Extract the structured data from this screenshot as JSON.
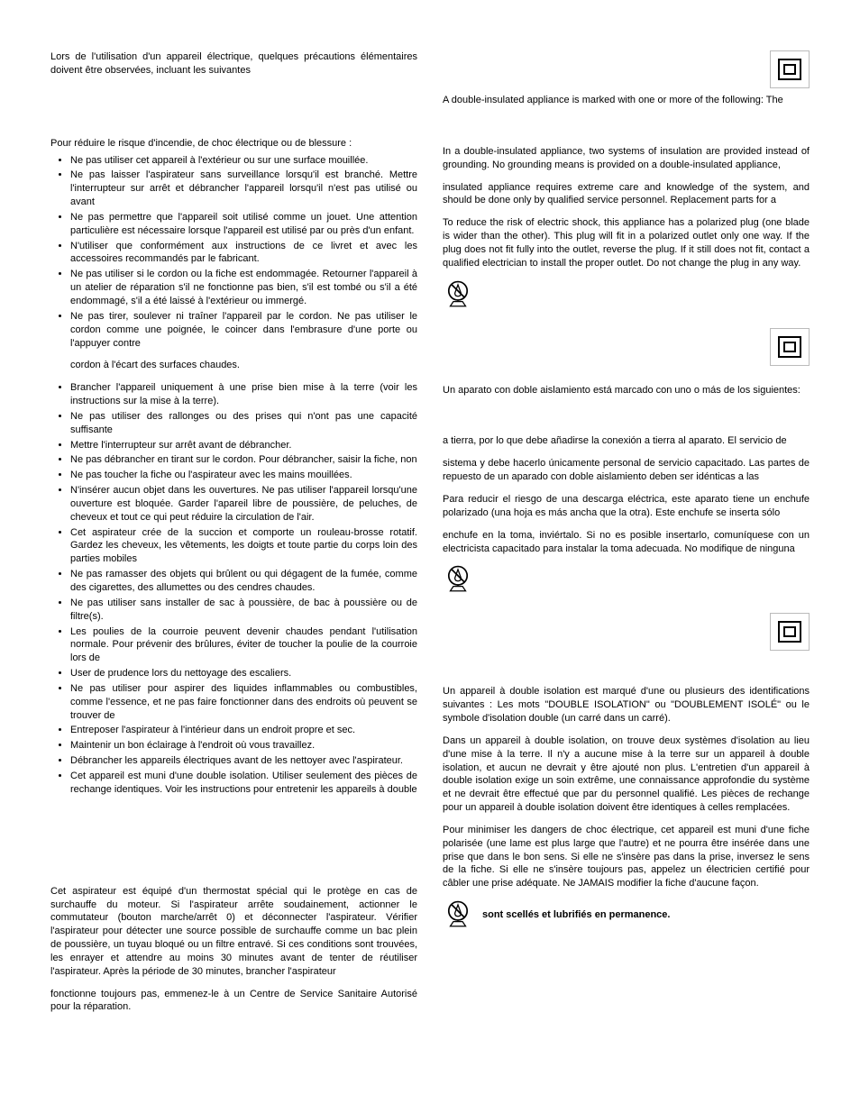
{
  "left": {
    "intro": "Lors de l'utilisation d'un appareil électrique, quelques précautions élémentaires doivent être observées, incluant les suivantes",
    "reduce": "Pour réduire le risque d'incendie, de choc électrique ou de blessure :",
    "bullets1": [
      "Ne pas utiliser cet appareil à l'extérieur ou sur une surface mouillée.",
      "Ne pas laisser l'aspirateur sans surveillance lorsqu'il est branché. Mettre l'interrupteur sur arrêt et débrancher l'appareil lorsqu'il n'est pas utilisé ou avant",
      "Ne pas permettre que l'appareil soit utilisé comme un jouet. Une attention particulière est nécessaire lorsque l'appareil est utilisé par ou près d'un enfant.",
      "N'utiliser que conformément aux instructions de ce livret et avec les accessoires recommandés par le fabricant.",
      "Ne pas utiliser si le cordon ou la fiche est endommagée. Retourner l'appareil à un atelier de réparation s'il ne fonctionne pas bien, s'il est tombé ou s'il a été endommagé, s'il a été laissé à l'extérieur ou immergé.",
      "Ne pas tirer, soulever ni traîner l'appareil par le cordon. Ne pas utiliser le cordon comme une poignée, le coincer dans l'embrasure d'une porte ou l'appuyer contre"
    ],
    "cordon": "cordon à l'écart des surfaces chaudes.",
    "bullets2": [
      "Brancher l'appareil uniquement à une prise bien mise à la terre (voir les instructions sur la mise à la terre).",
      "Ne pas utiliser des rallonges ou des prises qui n'ont pas une capacité suffisante",
      "Mettre l'interrupteur sur arrêt avant de débrancher.",
      "Ne pas débrancher en tirant sur le cordon. Pour débrancher, saisir la fiche, non",
      "Ne pas toucher la fiche ou l'aspirateur avec les mains mouillées.",
      "N'insérer aucun objet dans les ouvertures. Ne pas utiliser l'appareil lorsqu'une ouverture est bloquée. Garder l'apareil libre de poussière, de peluches, de cheveux et tout ce qui peut réduire la circulation de l'air.",
      "Cet aspirateur crée de la succion et comporte un rouleau-brosse rotatif. Gardez les cheveux, les vêtements, les doigts et toute partie du corps loin des parties mobiles",
      "Ne pas ramasser des objets qui brûlent ou qui dégagent de la fumée, comme des cigarettes, des allumettes ou des cendres chaudes.",
      "Ne pas utiliser sans installer de sac à poussière, de bac à poussière ou de filtre(s).",
      "Les poulies de la courroie peuvent devenir chaudes pendant l'utilisation normale. Pour prévenir des brûlures, éviter de toucher la poulie de la courroie lors de",
      "User de prudence lors du nettoyage des escaliers.",
      "Ne pas utiliser pour aspirer des liquides inflammables ou combustibles, comme l'essence, et ne pas faire fonctionner dans des endroits où peuvent se trouver de",
      "Entreposer l'aspirateur à l'intérieur dans un endroit propre et sec.",
      "Maintenir un bon éclairage à l'endroit où vous travaillez.",
      "Débrancher les appareils électriques avant de les nettoyer avec l'aspirateur.",
      "Cet appareil est muni d'une double isolation. Utiliser seulement des pièces de rechange identiques. Voir les instructions pour entretenir les appareils à double"
    ],
    "thermo1": "Cet aspirateur est équipé d'un thermostat spécial qui le protège en cas de surchauffe du moteur. Si l'aspirateur arrête soudainement, actionner le commutateur (bouton marche/arrêt 0) et déconnecter l'aspirateur. Vérifier l'aspirateur pour détecter une source possible de surchauffe comme un bac plein de poussière, un tuyau bloqué ou un filtre entravé. Si ces conditions sont trouvées, les enrayer et attendre au moins 30 minutes avant de tenter de réutiliser l'aspirateur. Après la période de 30 minutes, brancher l'aspirateur",
    "thermo2": "fonctionne toujours pas, emmenez-le à un Centre de Service Sanitaire Autorisé pour la réparation."
  },
  "right": {
    "en": {
      "marked": "A double-insulated appliance is marked with one or more of the following: The",
      "twosys": "In a double-insulated appliance, two systems of insulation are provided instead of grounding. No grounding means is provided on a double-insulated appliance,",
      "service": "insulated appliance requires extreme care and knowledge of the system, and should be done only by qualified service personnel. Replacement parts for a",
      "plug": "To reduce the risk of electric shock, this appliance has a polarized plug (one blade is wider than the other). This plug will fit in a polarized outlet only one way. If the plug does not fit fully into the outlet, reverse the plug. If it still does not fit, contact a qualified electrician to install the proper outlet. Do not change the plug in any way."
    },
    "es": {
      "marked": "Un aparato con doble aislamiento está marcado con uno o más de los siguientes:",
      "ground": "a tierra, por lo que debe añadirse la conexión a tierra al aparato.  El servicio de",
      "service": "sistema y debe hacerlo únicamente personal de servicio capacitado. Las partes de repuesto de un aparado con doble aislamiento deben ser idénticas a las",
      "plug1": "Para reducir el riesgo de una descarga eléctrica, este aparato tiene un enchufe polarizado (una hoja es más ancha que la otra). Este enchufe se inserta sólo",
      "plug2": "enchufe en la toma, inviértalo. Si no es posible insertarlo, comuníquese con un electricista capacitado para instalar la toma adecuada. No modifique de ninguna"
    },
    "fr": {
      "marked": "Un appareil à double isolation est marqué d'une ou plusieurs des identifications suivantes : Les mots \"DOUBLE ISOLATION\" ou \"DOUBLEMENT ISOLÉ\" ou le symbole d'isolation double (un carré dans un carré).",
      "twosys": "Dans un appareil à double isolation, on trouve deux systèmes d'isolation au lieu d'une mise à la terre. Il n'y a aucune mise à la terre sur un appareil à double isolation, et aucun ne devrait y être ajouté non plus. L'entretien d'un appareil à double isolation exige un soin extrême, une connaissance approfondie du système et ne devrait être effectué que par du personnel qualifié. Les pièces de rechange pour un appareil à double isolation doivent être identiques à celles remplacées.",
      "plug": "Pour minimiser les dangers de choc électrique, cet appareil est muni d'une fiche polarisée (une lame est plus large que l'autre) et ne pourra être insérée dans une prise que dans le bon sens. Si elle ne s'insère pas dans la prise, inversez le sens de la fiche. Si elle ne s'insère toujours pas, appelez un électricien certifié pour câbler une prise adéquate. Ne JAMAIS modifier la fiche d'aucune façon.",
      "oil": "sont scellés et lubrifiés en permanence."
    }
  },
  "icons": {
    "double_insulation": "double-insulation-symbol",
    "no_oil": "no-oil-symbol"
  },
  "colors": {
    "text": "#000000",
    "background": "#ffffff",
    "border_light": "#bbbbbb"
  }
}
